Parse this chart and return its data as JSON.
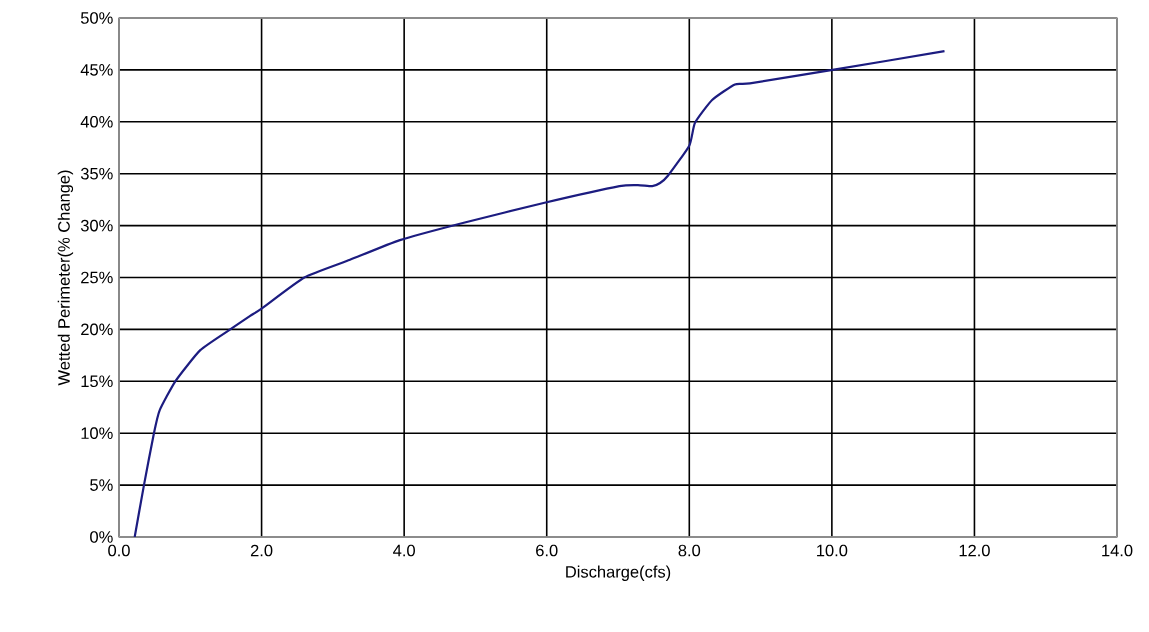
{
  "chart_data": {
    "type": "line",
    "xlabel": "Discharge(cfs)",
    "ylabel": "Wetted Perimeter(% Change)",
    "x": [
      0.22,
      0.35,
      0.49,
      0.57,
      0.79,
      1.14,
      1.56,
      1.84,
      2.0,
      2.6,
      3.24,
      3.94,
      4.85,
      5.97,
      7.02,
      7.28,
      7.48,
      7.59,
      7.7,
      8.0,
      8.08,
      8.32,
      8.64,
      8.85,
      10.01,
      11.58
    ],
    "series": [
      {
        "color": "#1c1c80",
        "values": [
          0,
          5,
          10,
          12.2,
          15,
          18,
          20,
          21.3,
          22,
          25,
          26.7,
          28.6,
          30.3,
          32.2,
          33.8,
          33.9,
          33.8,
          34.1,
          34.8,
          37.7,
          39.9,
          42.1,
          43.6,
          43.7,
          45.0,
          46.8
        ]
      }
    ],
    "xlim": [
      0,
      14
    ],
    "ylim": [
      0,
      50
    ],
    "xticks": [
      {
        "value": 0,
        "label": "0.0"
      },
      {
        "value": 2,
        "label": "2.0"
      },
      {
        "value": 4,
        "label": "4.0"
      },
      {
        "value": 6,
        "label": "6.0"
      },
      {
        "value": 8,
        "label": "8.0"
      },
      {
        "value": 10,
        "label": "10.0"
      },
      {
        "value": 12,
        "label": "12.0"
      },
      {
        "value": 14,
        "label": "14.0"
      }
    ],
    "yticks": [
      {
        "value": 0,
        "label": "0%"
      },
      {
        "value": 5,
        "label": "5%"
      },
      {
        "value": 10,
        "label": "10%"
      },
      {
        "value": 15,
        "label": "15%"
      },
      {
        "value": 20,
        "label": "20%"
      },
      {
        "value": 25,
        "label": "25%"
      },
      {
        "value": 30,
        "label": "30%"
      },
      {
        "value": 35,
        "label": "35%"
      },
      {
        "value": 40,
        "label": "40%"
      },
      {
        "value": 45,
        "label": "45%"
      },
      {
        "value": 50,
        "label": "50%"
      }
    ],
    "grid": true,
    "marker": "none",
    "line_style": "solid"
  }
}
